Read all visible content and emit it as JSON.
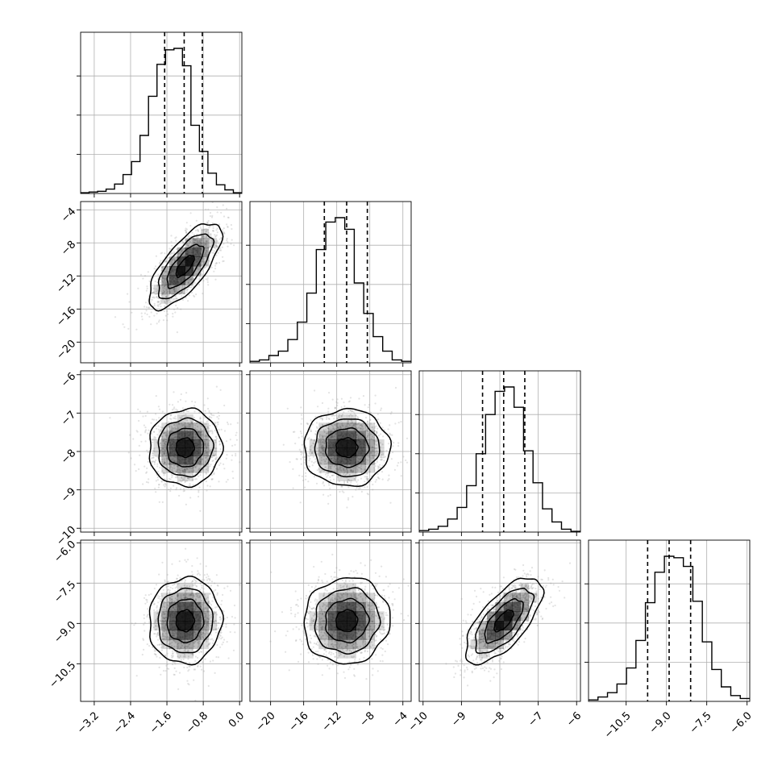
{
  "chart_data": {
    "type": "corner",
    "parameters": [
      {
        "ticks": [
          -3.2,
          -2.4,
          -1.6,
          -0.8,
          0.0
        ],
        "tick_labels": [
          "−3.2",
          "−2.4",
          "−1.6",
          "−0.8",
          "0.0"
        ],
        "range": [
          -3.5,
          0.05
        ],
        "histogram": [
          0.005,
          0.01,
          0.015,
          0.03,
          0.065,
          0.13,
          0.22,
          0.4,
          0.67,
          0.89,
          0.99,
          1.0,
          0.88,
          0.47,
          0.29,
          0.14,
          0.06,
          0.025,
          0.005
        ],
        "quantiles": [
          -1.65,
          -1.22,
          -0.82
        ],
        "mean": -1.2,
        "sd": 0.4
      },
      {
        "ticks": [
          -20,
          -16,
          -12,
          -8,
          -4
        ],
        "tick_labels": [
          "−20",
          "−16",
          "−12",
          "−8",
          "−4"
        ],
        "range": [
          -22.5,
          -3
        ],
        "histogram": [
          0.01,
          0.02,
          0.05,
          0.08,
          0.16,
          0.28,
          0.48,
          0.78,
          0.97,
          1.0,
          0.92,
          0.55,
          0.34,
          0.18,
          0.08,
          0.02,
          0.01
        ],
        "quantiles": [
          -13.5,
          -10.8,
          -8.3
        ],
        "mean": -10.8,
        "sd": 2.6
      },
      {
        "ticks": [
          -10,
          -9,
          -8,
          -7,
          -6
        ],
        "tick_labels": [
          "−10",
          "−9",
          "−8",
          "−7",
          "−6"
        ],
        "range": [
          -10.1,
          -5.9
        ],
        "histogram": [
          0.01,
          0.02,
          0.04,
          0.09,
          0.17,
          0.32,
          0.54,
          0.81,
          0.97,
          1.0,
          0.86,
          0.56,
          0.34,
          0.16,
          0.07,
          0.02,
          0.005
        ],
        "quantiles": [
          -8.45,
          -7.9,
          -7.35
        ],
        "mean": -7.9,
        "sd": 0.5
      },
      {
        "ticks": [
          -10.5,
          -9.0,
          -7.5,
          -6.0
        ],
        "tick_labels": [
          "−10.5",
          "−9.0",
          "−7.5",
          "−6.0"
        ],
        "range": [
          -11.9,
          -5.9
        ],
        "histogram": [
          0.01,
          0.03,
          0.06,
          0.12,
          0.23,
          0.42,
          0.68,
          0.89,
          1.0,
          0.99,
          0.93,
          0.69,
          0.41,
          0.22,
          0.1,
          0.04,
          0.02
        ],
        "quantiles": [
          -9.7,
          -8.9,
          -8.1
        ],
        "mean": -8.9,
        "sd": 0.8
      }
    ],
    "correlations": [
      [
        1,
        0.72,
        0.02,
        0.03
      ],
      [
        0.72,
        1,
        0.0,
        0.05
      ],
      [
        0.02,
        0.0,
        1,
        0.68
      ],
      [
        0.03,
        0.05,
        0.68,
        1
      ]
    ],
    "contour_levels_sigma": [
      0.5,
      1.0,
      1.5,
      2.0
    ],
    "grid": true,
    "colors": {
      "density": "#000000",
      "points": "#9a9a9a",
      "background": "#ffffff"
    }
  }
}
